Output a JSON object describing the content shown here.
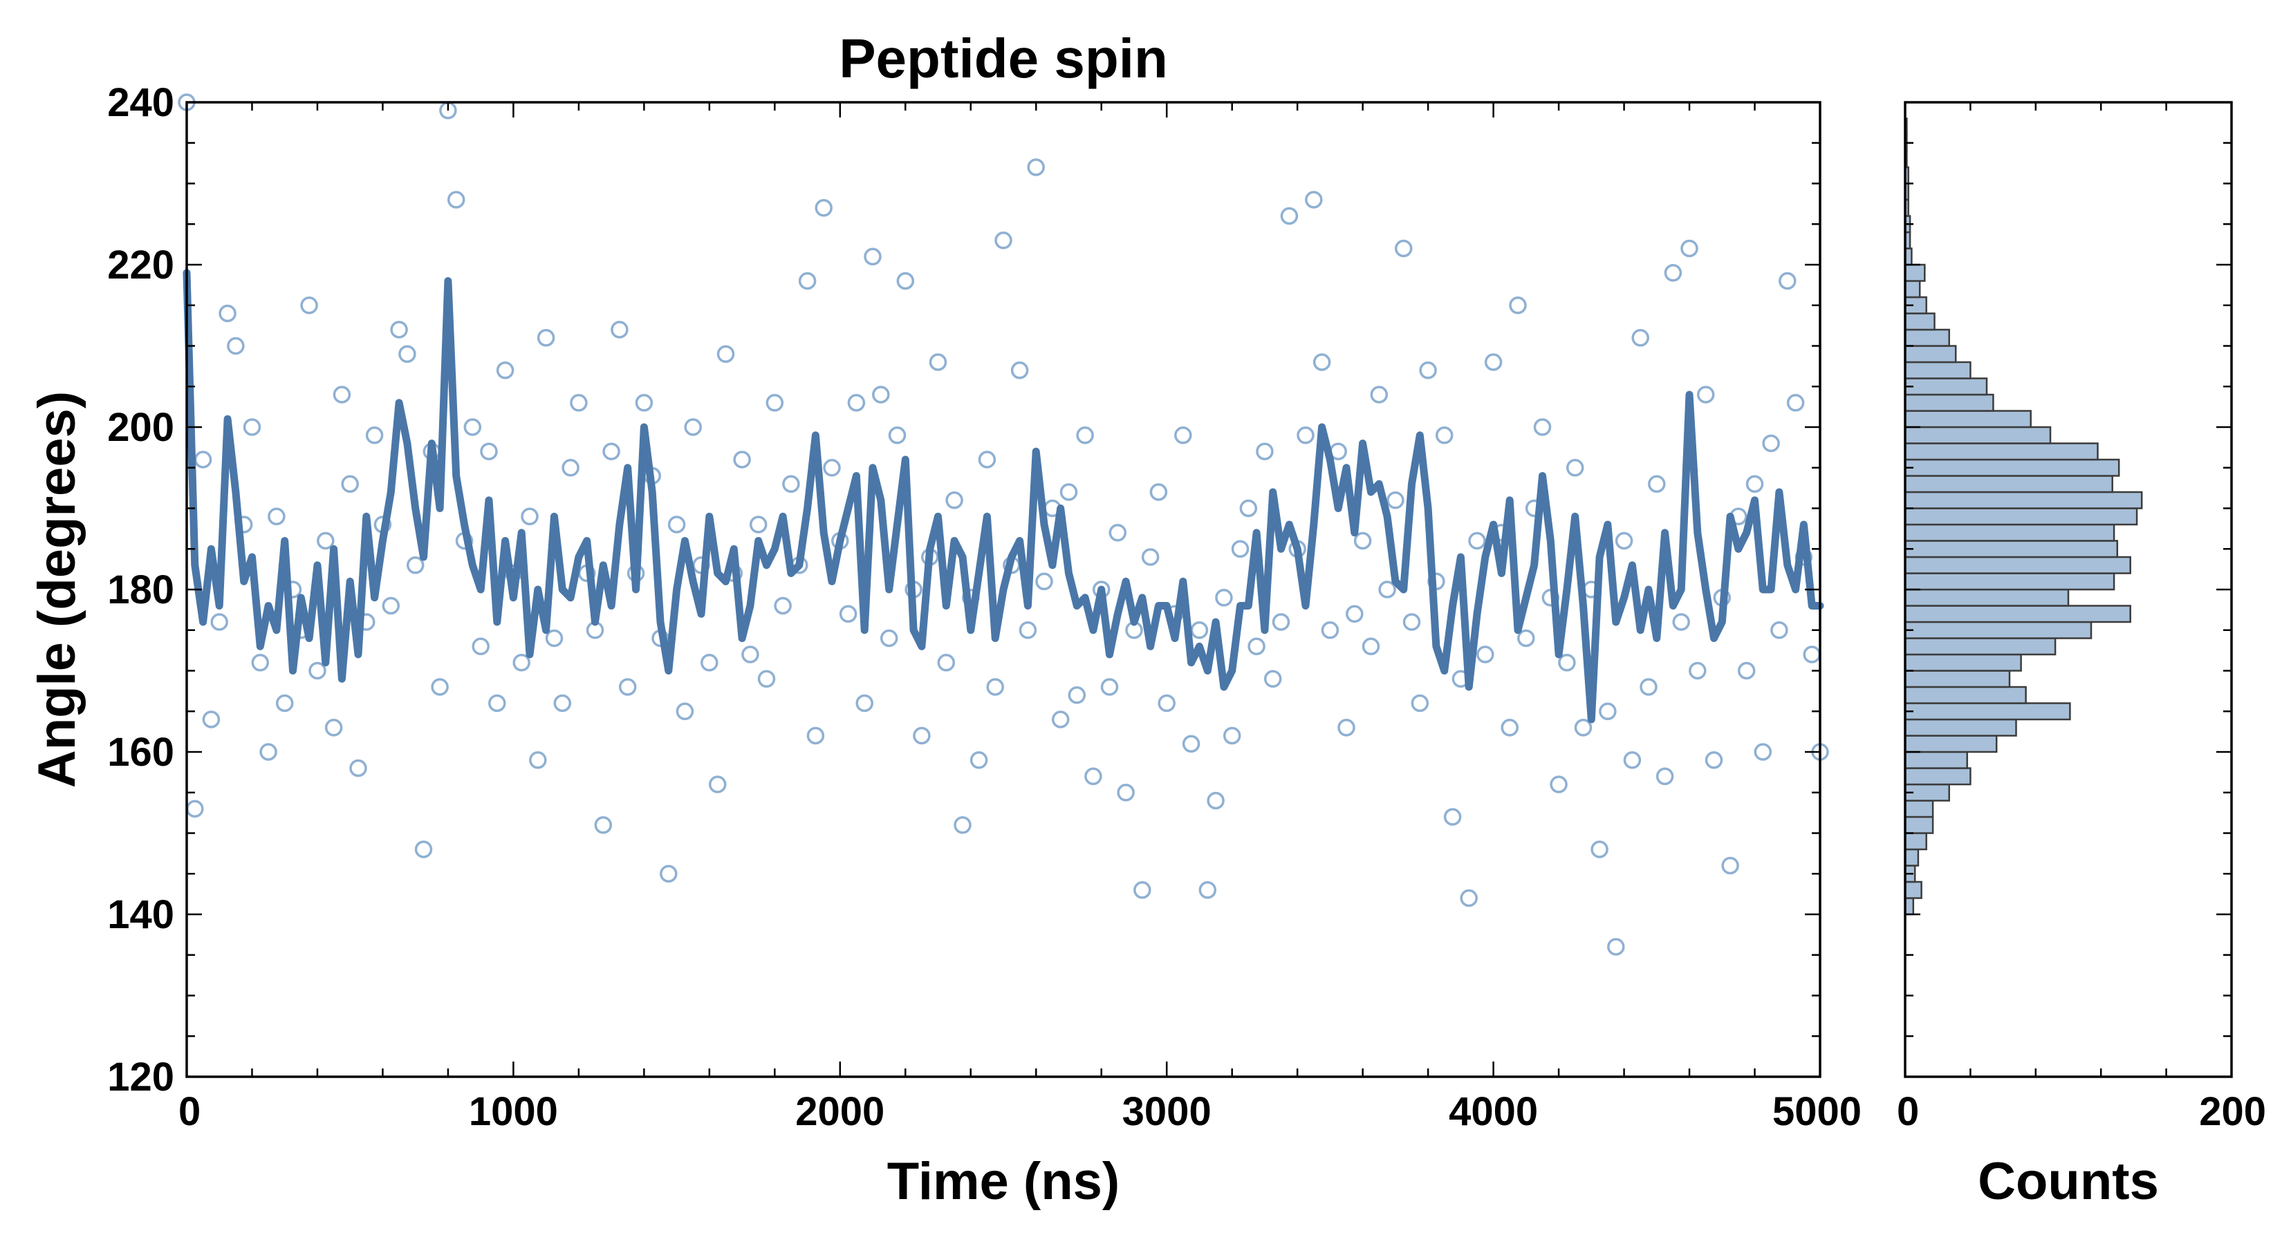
{
  "chart_data": {
    "type": "scatter",
    "title": "Peptide spin",
    "xlabel": "Time (ns)",
    "ylabel": "Angle (degrees)",
    "xlim": [
      0,
      5000
    ],
    "ylim": [
      120,
      240
    ],
    "xticks": [
      0,
      1000,
      2000,
      3000,
      4000,
      5000
    ],
    "yticks": [
      120,
      140,
      160,
      180,
      200,
      220,
      240
    ],
    "grid": false,
    "scatter_style": "open circles, light steel blue",
    "line_style": "thick solid steel blue (smoothed)",
    "series": [
      {
        "name": "raw angle samples",
        "kind": "scatter",
        "x": [
          0,
          25,
          50,
          75,
          100,
          125,
          150,
          175,
          200,
          225,
          250,
          275,
          300,
          325,
          350,
          375,
          400,
          425,
          450,
          475,
          500,
          525,
          550,
          575,
          600,
          625,
          650,
          675,
          700,
          725,
          750,
          775,
          800,
          825,
          850,
          875,
          900,
          925,
          950,
          975,
          1000,
          1025,
          1050,
          1075,
          1100,
          1125,
          1150,
          1175,
          1200,
          1225,
          1250,
          1275,
          1300,
          1325,
          1350,
          1375,
          1400,
          1425,
          1450,
          1475,
          1500,
          1525,
          1550,
          1575,
          1600,
          1625,
          1650,
          1675,
          1700,
          1725,
          1750,
          1775,
          1800,
          1825,
          1850,
          1875,
          1900,
          1925,
          1950,
          1975,
          2000,
          2025,
          2050,
          2075,
          2100,
          2125,
          2150,
          2175,
          2200,
          2225,
          2250,
          2275,
          2300,
          2325,
          2350,
          2375,
          2400,
          2425,
          2450,
          2475,
          2500,
          2525,
          2550,
          2575,
          2600,
          2625,
          2650,
          2675,
          2700,
          2725,
          2750,
          2775,
          2800,
          2825,
          2850,
          2875,
          2900,
          2925,
          2950,
          2975,
          3000,
          3025,
          3050,
          3075,
          3100,
          3125,
          3150,
          3175,
          3200,
          3225,
          3250,
          3275,
          3300,
          3325,
          3350,
          3375,
          3400,
          3425,
          3450,
          3475,
          3500,
          3525,
          3550,
          3575,
          3600,
          3625,
          3650,
          3675,
          3700,
          3725,
          3750,
          3775,
          3800,
          3825,
          3850,
          3875,
          3900,
          3925,
          3950,
          3975,
          4000,
          4025,
          4050,
          4075,
          4100,
          4125,
          4150,
          4175,
          4200,
          4225,
          4250,
          4275,
          4300,
          4325,
          4350,
          4375,
          4400,
          4425,
          4450,
          4475,
          4500,
          4525,
          4550,
          4575,
          4600,
          4625,
          4650,
          4675,
          4700,
          4725,
          4750,
          4775,
          4800,
          4825,
          4850,
          4875,
          4900,
          4925,
          4950,
          4975,
          5000
        ],
        "y": [
          240,
          153,
          196,
          164,
          176,
          214,
          210,
          188,
          200,
          171,
          160,
          189,
          166,
          180,
          175,
          215,
          170,
          186,
          163,
          204,
          193,
          158,
          176,
          199,
          188,
          178,
          212,
          209,
          183,
          148,
          197,
          168,
          239,
          228,
          186,
          200,
          173,
          197,
          166,
          207,
          182,
          171,
          189,
          159,
          211,
          174,
          166,
          195,
          203,
          182,
          175,
          151,
          197,
          212,
          168,
          182,
          203,
          194,
          174,
          145,
          188,
          165,
          200,
          183,
          171,
          156,
          209,
          182,
          196,
          172,
          188,
          169,
          203,
          178,
          193,
          183,
          218,
          162,
          227,
          195,
          186,
          177,
          203,
          166,
          221,
          204,
          174,
          199,
          218,
          180,
          162,
          184,
          208,
          171,
          191,
          151,
          179,
          159,
          196,
          168,
          223,
          183,
          207,
          175,
          232,
          181,
          190,
          164,
          192,
          167,
          199,
          157,
          180,
          168,
          187,
          155,
          175,
          143,
          184,
          192,
          166,
          177,
          199,
          161,
          175,
          143,
          154,
          179,
          162,
          185,
          190,
          173,
          197,
          169,
          176,
          226,
          185,
          199,
          228,
          208,
          175,
          197,
          163,
          177,
          186,
          173,
          204,
          180,
          191,
          222,
          176,
          166,
          207,
          181,
          199,
          152,
          169,
          142,
          186,
          172,
          208,
          187,
          163,
          215,
          174,
          190,
          200,
          179,
          156,
          171,
          195,
          163,
          180,
          148,
          165,
          136,
          186,
          159,
          211,
          168,
          193,
          157,
          219,
          176,
          222,
          170,
          204,
          159,
          179,
          146,
          189,
          170,
          193,
          160,
          198,
          175,
          218,
          203,
          184,
          172,
          160
        ]
      },
      {
        "name": "smoothed trajectory",
        "kind": "line",
        "x": [
          0,
          25,
          50,
          75,
          100,
          125,
          150,
          175,
          200,
          225,
          250,
          275,
          300,
          325,
          350,
          375,
          400,
          425,
          450,
          475,
          500,
          525,
          550,
          575,
          600,
          625,
          650,
          675,
          700,
          725,
          750,
          775,
          800,
          825,
          850,
          875,
          900,
          925,
          950,
          975,
          1000,
          1025,
          1050,
          1075,
          1100,
          1125,
          1150,
          1175,
          1200,
          1225,
          1250,
          1275,
          1300,
          1325,
          1350,
          1375,
          1400,
          1425,
          1450,
          1475,
          1500,
          1525,
          1550,
          1575,
          1600,
          1625,
          1650,
          1675,
          1700,
          1725,
          1750,
          1775,
          1800,
          1825,
          1850,
          1875,
          1900,
          1925,
          1950,
          1975,
          2000,
          2025,
          2050,
          2075,
          2100,
          2125,
          2150,
          2175,
          2200,
          2225,
          2250,
          2275,
          2300,
          2325,
          2350,
          2375,
          2400,
          2425,
          2450,
          2475,
          2500,
          2525,
          2550,
          2575,
          2600,
          2625,
          2650,
          2675,
          2700,
          2725,
          2750,
          2775,
          2800,
          2825,
          2850,
          2875,
          2900,
          2925,
          2950,
          2975,
          3000,
          3025,
          3050,
          3075,
          3100,
          3125,
          3150,
          3175,
          3200,
          3225,
          3250,
          3275,
          3300,
          3325,
          3350,
          3375,
          3400,
          3425,
          3450,
          3475,
          3500,
          3525,
          3550,
          3575,
          3600,
          3625,
          3650,
          3675,
          3700,
          3725,
          3750,
          3775,
          3800,
          3825,
          3850,
          3875,
          3900,
          3925,
          3950,
          3975,
          4000,
          4025,
          4050,
          4075,
          4100,
          4125,
          4150,
          4175,
          4200,
          4225,
          4250,
          4275,
          4300,
          4325,
          4350,
          4375,
          4400,
          4425,
          4450,
          4475,
          4500,
          4525,
          4550,
          4575,
          4600,
          4625,
          4650,
          4675,
          4700,
          4725,
          4750,
          4775,
          4800,
          4825,
          4850,
          4875,
          4900,
          4925,
          4950,
          4975,
          5000
        ],
        "y": [
          219,
          183,
          176,
          185,
          178,
          201,
          192,
          181,
          184,
          173,
          178,
          175,
          186,
          170,
          179,
          174,
          183,
          171,
          185,
          169,
          181,
          172,
          189,
          179,
          186,
          192,
          203,
          198,
          190,
          184,
          198,
          190,
          218,
          194,
          188,
          183,
          180,
          191,
          176,
          186,
          179,
          187,
          172,
          180,
          175,
          189,
          180,
          179,
          184,
          186,
          176,
          183,
          178,
          188,
          195,
          180,
          200,
          192,
          176,
          170,
          180,
          186,
          181,
          177,
          189,
          182,
          181,
          185,
          174,
          178,
          186,
          183,
          185,
          189,
          182,
          183,
          190,
          199,
          187,
          181,
          186,
          190,
          194,
          175,
          195,
          191,
          180,
          188,
          196,
          175,
          173,
          185,
          189,
          178,
          186,
          184,
          175,
          182,
          189,
          174,
          180,
          184,
          186,
          178,
          197,
          188,
          183,
          190,
          182,
          178,
          179,
          175,
          180,
          172,
          177,
          181,
          176,
          179,
          173,
          178,
          178,
          174,
          181,
          171,
          173,
          170,
          176,
          168,
          170,
          178,
          178,
          187,
          175,
          192,
          185,
          188,
          185,
          178,
          188,
          200,
          196,
          190,
          195,
          187,
          198,
          192,
          193,
          189,
          181,
          180,
          193,
          199,
          190,
          173,
          170,
          178,
          184,
          168,
          177,
          184,
          188,
          182,
          191,
          175,
          179,
          183,
          194,
          186,
          172,
          180,
          189,
          178,
          164,
          184,
          188,
          176,
          179,
          183,
          175,
          180,
          174,
          187,
          178,
          180,
          204,
          187,
          180,
          174,
          176,
          189,
          185,
          187,
          191,
          180,
          180,
          192,
          183,
          180,
          188,
          178,
          178
        ]
      }
    ],
    "histogram": {
      "type": "bar",
      "orientation": "horizontal",
      "xlabel": "Counts",
      "xlim": [
        0,
        200
      ],
      "xticks": [
        0,
        200
      ],
      "ylim": [
        120,
        240
      ],
      "bin_edges": [
        140,
        142,
        144,
        146,
        148,
        150,
        152,
        154,
        156,
        158,
        160,
        162,
        164,
        166,
        168,
        170,
        172,
        174,
        176,
        178,
        180,
        182,
        184,
        186,
        188,
        190,
        192,
        194,
        196,
        198,
        200,
        202,
        204,
        206,
        208,
        210,
        212,
        214,
        216,
        218,
        220,
        222,
        224,
        226,
        228,
        230,
        232,
        234,
        236,
        238,
        240
      ],
      "counts": [
        5,
        10,
        6,
        8,
        13,
        17,
        17,
        27,
        40,
        38,
        56,
        68,
        101,
        74,
        64,
        71,
        92,
        114,
        138,
        100,
        128,
        138,
        130,
        128,
        142,
        145,
        127,
        131,
        118,
        89,
        77,
        54,
        50,
        40,
        31,
        27,
        18,
        13,
        9,
        12,
        4,
        3,
        3,
        2,
        2,
        2,
        1,
        1,
        1,
        0
      ]
    },
    "colors": {
      "scatter": "#8fb0d2",
      "line": "#4a77a8",
      "hist_fill": "#a7bfd8",
      "hist_edge": "#3c3c3c"
    }
  }
}
